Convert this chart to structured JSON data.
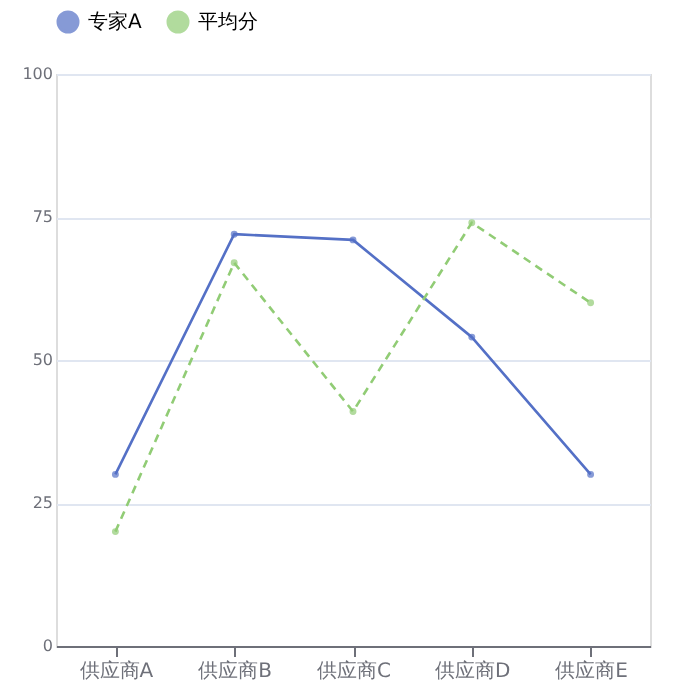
{
  "chart_data": {
    "type": "line",
    "categories": [
      "供应商A",
      "供应商B",
      "供应商C",
      "供应商D",
      "供应商E"
    ],
    "series": [
      {
        "name": "专家A",
        "color": "#5470c6",
        "values": [
          30,
          72,
          71,
          54,
          30
        ],
        "line_style": "solid"
      },
      {
        "name": "平均分",
        "color": "#91cc75",
        "values": [
          20,
          67,
          41,
          74,
          60
        ],
        "line_style": "dashed"
      }
    ],
    "ylim": [
      0,
      100
    ],
    "yticks": [
      0,
      25,
      50,
      75,
      100
    ],
    "grid": "y",
    "legend": "top",
    "marker": "circle"
  }
}
